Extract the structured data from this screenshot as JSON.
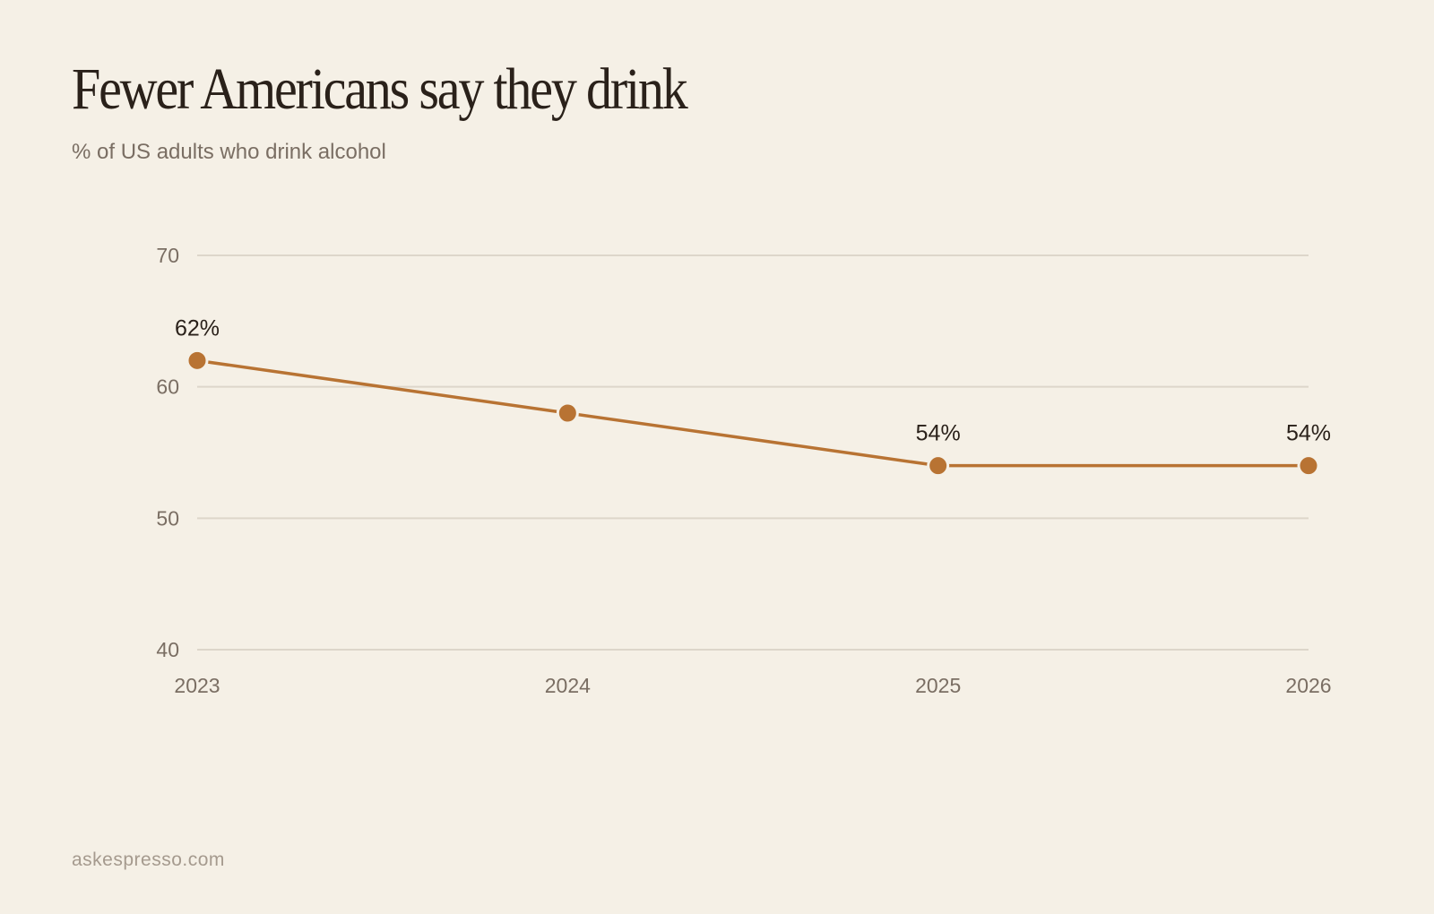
{
  "title": "Fewer Americans say they drink",
  "subtitle": "% of US adults who drink alcohol",
  "footer": "askespresso.com",
  "colors": {
    "background": "#F5F0E6",
    "line": "#B87333",
    "grid": "#DDD6CA",
    "text_dark": "#2A211A",
    "text_muted": "#7A6E63"
  },
  "chart_data": {
    "type": "line",
    "title": "Fewer Americans say they drink",
    "subtitle": "% of US adults who drink alcohol",
    "xlabel": "",
    "ylabel": "",
    "categories": [
      "2023",
      "2024",
      "2025",
      "2026"
    ],
    "series": [
      {
        "values": [
          62,
          58,
          54,
          54
        ],
        "data_labels": [
          "62%",
          "",
          "54%",
          "54%"
        ]
      }
    ],
    "ylim": [
      40,
      70
    ],
    "yticks": [
      "40",
      "50",
      "60",
      "70"
    ],
    "grid": true,
    "legend": "none"
  }
}
